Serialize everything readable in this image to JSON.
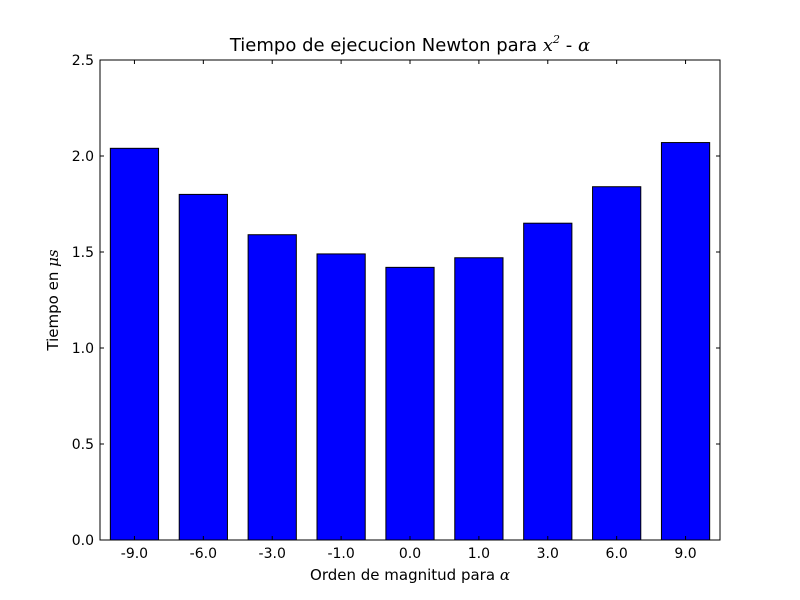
{
  "chart_data": {
    "type": "bar",
    "title": {
      "text": "Tiempo de ejecucion Newton para ",
      "math_base": "x",
      "math_exp": "2",
      "suffix": "  - ",
      "math_tail": "α"
    },
    "xlabel": {
      "text": "Orden de magnitud para ",
      "math": "α"
    },
    "ylabel": {
      "text": "Tiempo en ",
      "math": "μs"
    },
    "categories": [
      "-9.0",
      "-6.0",
      "-3.0",
      "-1.0",
      "0.0",
      "1.0",
      "3.0",
      "6.0",
      "9.0"
    ],
    "values": [
      2.04,
      1.8,
      1.59,
      1.49,
      1.42,
      1.47,
      1.65,
      1.84,
      2.07
    ],
    "ylim": [
      0,
      2.5
    ],
    "yticks": [
      0.0,
      0.5,
      1.0,
      1.5,
      2.0,
      2.5
    ],
    "ytick_labels": [
      "0.0",
      "0.5",
      "1.0",
      "1.5",
      "2.0",
      "2.5"
    ],
    "bar_color": "#0000ff",
    "edge_color": "#000000",
    "grid": false,
    "legend": "none"
  }
}
